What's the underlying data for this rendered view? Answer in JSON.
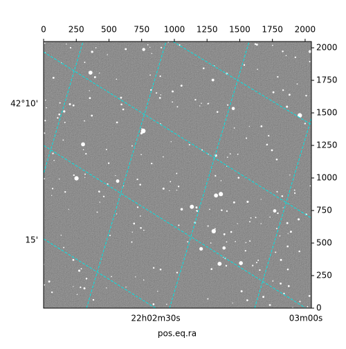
{
  "chart_data": {
    "type": "image",
    "xlabel": "pos.eq.ra",
    "xlim": [
      0,
      2048
    ],
    "xticks": [
      0,
      250,
      500,
      750,
      1000,
      1250,
      1500,
      1750,
      2000
    ],
    "ylim": [
      0,
      2048
    ],
    "yticks": [
      0,
      250,
      500,
      750,
      1000,
      1250,
      1500,
      1750,
      2000
    ],
    "ra_labels": [
      "22h02m30s",
      "03m00s"
    ],
    "dec_labels": [
      "42°10'",
      "15'"
    ],
    "grid_color": "#00e5e5"
  }
}
